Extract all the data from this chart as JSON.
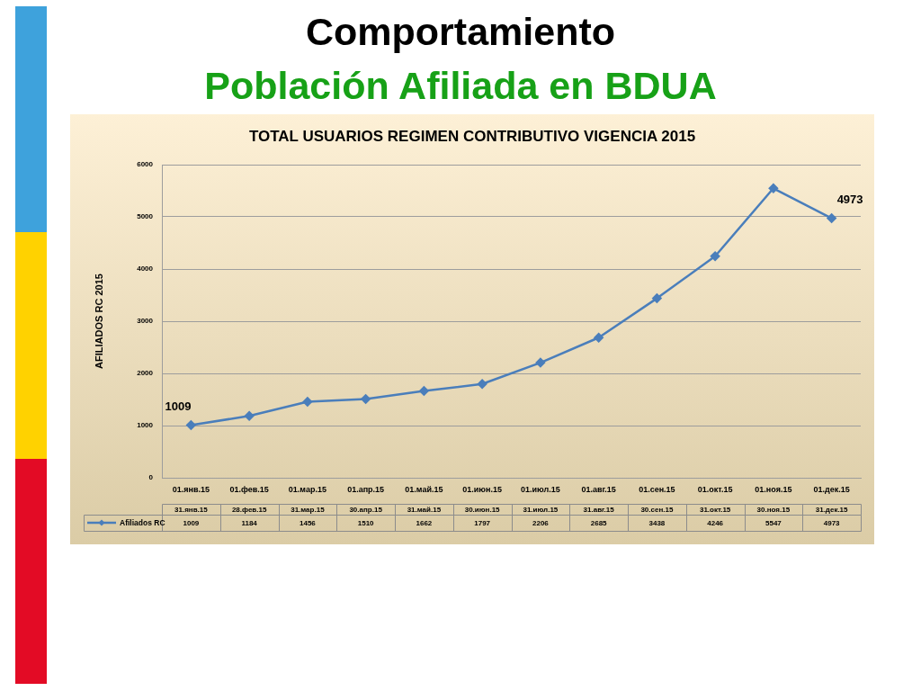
{
  "chart_data": {
    "type": "line",
    "title": "Comportamiento",
    "subtitle": "Población Afiliada en BDUA",
    "ylabel": "AFILIADOS RC 2015",
    "annotations": [
      "TOTAL USUARIOS REGIMEN CONTRIBUTIVO VIGENCIA 2015",
      {
        "text": "1009",
        "x": "01.янв.15",
        "y": 1009
      },
      {
        "text": "4973",
        "x": "01.дек.15",
        "y": 4973
      },
      "31.янв.15",
      "28.фев.15",
      "31.мар.15",
      "30.апр.15",
      "31.май.15",
      "30.июн.15",
      "31.июл.15",
      "31.авг.15",
      "30.сен.15",
      "31.окт.15",
      "30.ноя.15",
      "31.дек.15"
    ],
    "categories": [
      "01.янв.15",
      "01.фев.15",
      "01.мар.15",
      "01.апр.15",
      "01.май.15",
      "01.июн.15",
      "01.июл.15",
      "01.авг.15",
      "01.сен.15",
      "01.окт.15",
      "01.ноя.15",
      "01.дек.15"
    ],
    "series": [
      {
        "name": "Afiliados RC",
        "color": "#4a7ebb",
        "values": [
          1009,
          1184,
          1456,
          1510,
          1662,
          1797,
          2206,
          2685,
          3438,
          4246,
          5547,
          4973
        ]
      }
    ],
    "ylim": [
      0,
      6000
    ],
    "yticks": [
      0,
      1000,
      2000,
      3000,
      4000,
      5000,
      6000
    ],
    "grid": "y",
    "legend": "bottom left",
    "marker": "diamond",
    "line_style": "solid",
    "data_labels": true
  }
}
